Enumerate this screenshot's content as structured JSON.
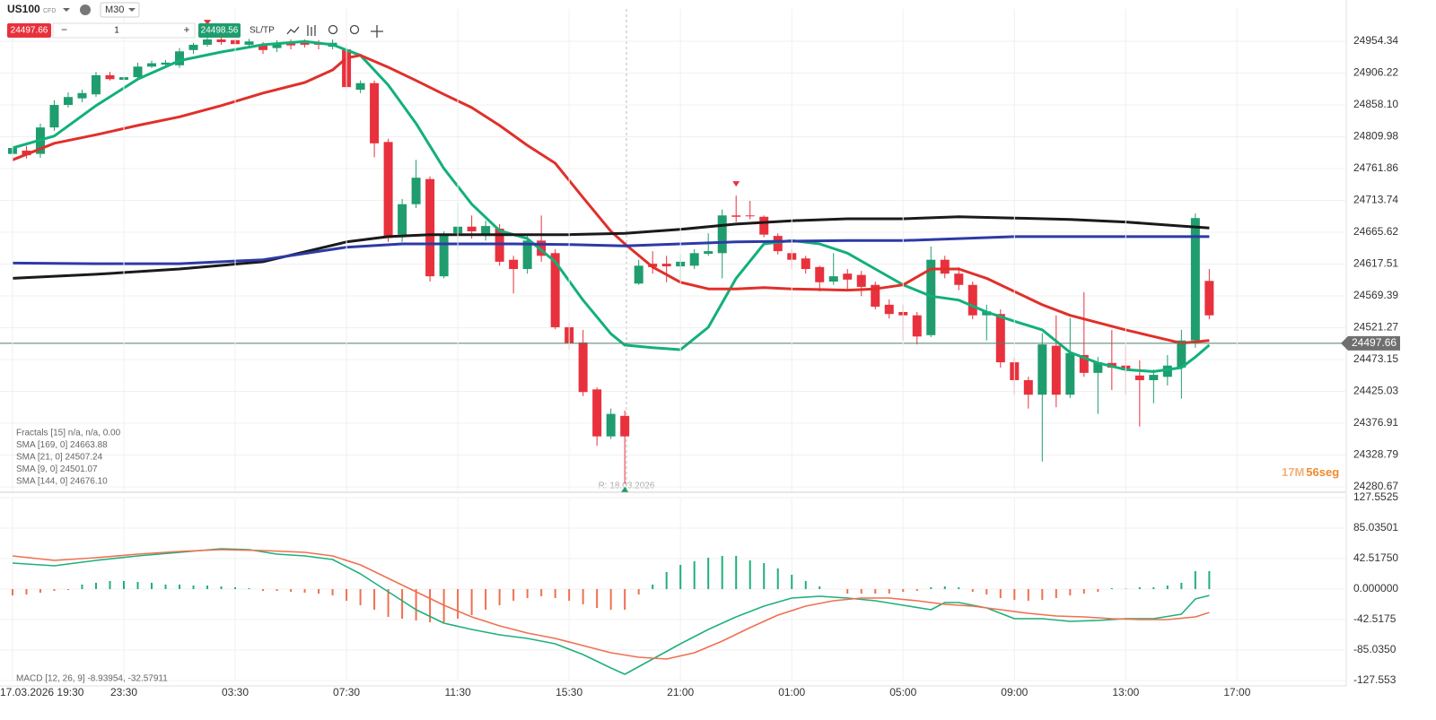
{
  "toolbar": {
    "symbol": "US100",
    "market": "CFD",
    "timeframe": "M30",
    "sell_price": "24497.66",
    "decrease": "−",
    "quantity": "1",
    "increase": "+",
    "buy_price": "24498.56",
    "sltp": "SL/TP"
  },
  "indicators": [
    "Fractals [15] n/a, n/a, 0.00",
    "SMA [169, 0] 24663.88",
    "SMA [21, 0] 24507.24",
    "SMA [9, 0] 24501.07",
    "SMA [144, 0] 24676.10"
  ],
  "macd_label": "MACD [12, 26, 9] -8.93954, -32.57911",
  "countdown": {
    "minutes": "17M",
    "seconds": "56seg"
  },
  "crosshair_label": "R: 18.03.2026",
  "chart_data": [
    {
      "type": "candlestick",
      "up_color": "#1f9d6e",
      "down_color": "#e8313d",
      "open": [
        24784,
        24789,
        24784,
        24824,
        24858,
        24868,
        24874,
        24903,
        24896,
        24900,
        24916,
        24919,
        24918,
        24941,
        24949,
        24957,
        24956,
        24949,
        24949,
        24944,
        24952,
        24952,
        24952,
        24946,
        24942,
        24881,
        24891,
        24802,
        24662,
        24708,
        24746,
        24599,
        24664,
        24674,
        24662,
        24671,
        24624,
        24610,
        24653,
        24634,
        24522,
        24499,
        24428,
        24357,
        24388,
        24588,
        24618,
        24618,
        24614,
        24615,
        24633,
        24634,
        24691,
        24691,
        24689,
        24660,
        24634,
        24626,
        24613,
        24591,
        24603,
        24601,
        24586,
        24556,
        24545,
        24540,
        24510,
        24624,
        24603,
        24586,
        24540,
        24542,
        24469,
        24442,
        24420,
        24494,
        24420,
        24480,
        24453,
        24468,
        24464,
        24449,
        24442,
        24447,
        24461,
        24502,
        24592
      ],
      "high": [
        24800,
        24796,
        24830,
        24865,
        24877,
        24881,
        24908,
        24908,
        24904,
        24922,
        24925,
        24926,
        24944,
        24952,
        24965,
        24963,
        24960,
        24958,
        24953,
        24956,
        24957,
        24957,
        24956,
        24957,
        24949,
        24895,
        24895,
        24807,
        24716,
        24775,
        24750,
        24667,
        24710,
        24691,
        24683,
        24678,
        24630,
        24662,
        24691,
        24640,
        24529,
        24518,
        24431,
        24399,
        24396,
        24624,
        24637,
        24630,
        24632,
        24640,
        24664,
        24700,
        24721,
        24713,
        24691,
        24664,
        24640,
        24630,
        24615,
        24634,
        24610,
        24607,
        24591,
        24564,
        24556,
        24545,
        24644,
        24630,
        24613,
        24591,
        24556,
        24549,
        24477,
        24447,
        24513,
        24540,
        24536,
        24575,
        24477,
        24518,
        24495,
        24472,
        24458,
        24480,
        24518,
        24694,
        24610
      ],
      "low": [
        24778,
        24777,
        24778,
        24819,
        24854,
        24862,
        24870,
        24895,
        24892,
        24897,
        24914,
        24916,
        24914,
        24935,
        24946,
        24949,
        24946,
        24946,
        24935,
        24938,
        24942,
        24945,
        24942,
        24942,
        24881,
        24876,
        24779,
        24651,
        24651,
        24702,
        24591,
        24596,
        24640,
        24656,
        24653,
        24615,
        24573,
        24603,
        24621,
        24519,
        24488,
        24418,
        24343,
        24353,
        24285,
        24586,
        24603,
        24590,
        24588,
        24610,
        24630,
        24596,
        24681,
        24685,
        24658,
        24632,
        24610,
        24603,
        24576,
        24586,
        24576,
        24569,
        24549,
        24535,
        24502,
        24496,
        24507,
        24596,
        24578,
        24534,
        24502,
        24461,
        24420,
        24399,
        24319,
        24401,
        24415,
        24447,
        24391,
        24427,
        24420,
        24372,
        24407,
        24434,
        24414,
        24491,
        24534
      ],
      "close": [
        24793,
        24782,
        24824,
        24858,
        24870,
        24876,
        24903,
        24897,
        24900,
        24916,
        24921,
        24922,
        24939,
        24949,
        24957,
        24953,
        24950,
        24954,
        24941,
        24950,
        24948,
        24949,
        24949,
        24952,
        24885,
        24891,
        24800,
        24657,
        24708,
        24748,
        24599,
        24662,
        24674,
        24667,
        24675,
        24621,
        24610,
        24653,
        24630,
        24522,
        24498,
        24424,
        24357,
        24391,
        24357,
        24615,
        24613,
        24614,
        24621,
        24634,
        24637,
        24691,
        24689,
        24690,
        24662,
        24637,
        24624,
        24610,
        24590,
        24599,
        24594,
        24583,
        24553,
        24542,
        24540,
        24508,
        24624,
        24603,
        24586,
        24540,
        24546,
        24469,
        24442,
        24420,
        24496,
        24420,
        24483,
        24453,
        24469,
        24461,
        24457,
        24442,
        24450,
        24464,
        24502,
        24687,
        24540
      ],
      "fractal_up": [
        14,
        52
      ],
      "fractal_down": [
        44
      ],
      "series": [
        {
          "color": "#12b07a",
          "x": [
            0,
            3,
            6,
            9,
            12,
            15,
            18,
            21,
            23,
            25,
            27,
            29,
            31,
            33,
            35,
            37,
            39,
            41,
            43,
            44,
            46,
            48,
            50,
            52,
            54,
            56,
            58,
            60,
            62,
            64,
            66,
            68,
            70,
            72,
            74,
            76,
            78,
            80,
            82,
            84,
            85,
            86
          ],
          "values": [
            24793,
            24811,
            24857,
            24897,
            24925,
            24938,
            24949,
            24954,
            24949,
            24933,
            24888,
            24830,
            24762,
            24708,
            24668,
            24656,
            24621,
            24563,
            24512,
            24495,
            24491,
            24488,
            24522,
            24596,
            24648,
            24653,
            24648,
            24634,
            24610,
            24586,
            24569,
            24563,
            24545,
            24531,
            24518,
            24484,
            24468,
            24458,
            24455,
            24461,
            24477,
            24495
          ]
        },
        {
          "color": "#e0302a",
          "x": [
            0,
            3,
            6,
            9,
            12,
            15,
            18,
            21,
            23,
            24,
            25,
            27,
            29,
            31,
            33,
            35,
            37,
            39,
            41,
            43,
            44,
            46,
            48,
            50,
            52,
            54,
            56,
            58,
            60,
            62,
            64,
            66,
            68,
            70,
            72,
            74,
            76,
            78,
            80,
            82,
            84,
            85,
            86
          ],
          "values": [
            24775,
            24800,
            24813,
            24827,
            24840,
            24857,
            24876,
            24892,
            24911,
            24929,
            24933,
            24915,
            24895,
            24874,
            24854,
            24827,
            24797,
            24770,
            24718,
            24667,
            24648,
            24613,
            24590,
            24580,
            24580,
            24582,
            24580,
            24579,
            24578,
            24580,
            24586,
            24610,
            24610,
            24596,
            24576,
            24556,
            24540,
            24529,
            24518,
            24508,
            24498,
            24500,
            24502
          ]
        },
        {
          "color": "#1a1a1a",
          "x": [
            0,
            6,
            12,
            18,
            24,
            27,
            30,
            35,
            40,
            44,
            48,
            52,
            56,
            60,
            64,
            68,
            72,
            76,
            80,
            84,
            86
          ],
          "values": [
            24596,
            24602,
            24610,
            24621,
            24651,
            24659,
            24662,
            24662,
            24662,
            24664,
            24670,
            24678,
            24683,
            24686,
            24686,
            24689,
            24687,
            24685,
            24681,
            24675,
            24672
          ]
        },
        {
          "color": "#2e3aa6",
          "x": [
            0,
            6,
            12,
            18,
            24,
            28,
            32,
            36,
            40,
            44,
            48,
            52,
            56,
            60,
            64,
            68,
            72,
            76,
            80,
            84,
            86
          ],
          "values": [
            24619,
            24618,
            24618,
            24624,
            24643,
            24648,
            24648,
            24648,
            24647,
            24645,
            24648,
            24651,
            24652,
            24653,
            24653,
            24656,
            24659,
            24659,
            24659,
            24659,
            24659
          ]
        }
      ],
      "current_price": 24497.66,
      "xlim": [
        -0.9,
        95.2
      ],
      "ylim": [
        24273.9,
        25003.1
      ],
      "yticks": [
        24954.34,
        24906.22,
        {
          "value": 24858.1,
          "label": "24858.10"
        },
        24809.98,
        24761.86,
        24713.74,
        24665.62,
        24617.51,
        24569.39,
        24521.27,
        24473.15,
        24425.03,
        24376.91,
        24328.79,
        24280.67
      ],
      "grid": true
    },
    {
      "type": "bar",
      "up_color": "#1fb07a",
      "down_color": "#f07050",
      "values": [
        -8.8,
        -7.5,
        -5,
        -2.5,
        -1.3,
        6.3,
        8.8,
        11.3,
        11.3,
        10,
        8.8,
        6.3,
        6.3,
        5,
        5,
        3.8,
        2.5,
        1.3,
        -2.5,
        -2.5,
        -3.8,
        -5,
        -6.3,
        -8.8,
        -16.3,
        -22.5,
        -28.8,
        -38.8,
        -41.3,
        -43.8,
        -46.3,
        -46.3,
        -41.3,
        -36.3,
        -28.8,
        -22.5,
        -16.3,
        -12.5,
        -10,
        -12.5,
        -16.3,
        -21.3,
        -26.3,
        -28.8,
        -28.8,
        -7.5,
        6.3,
        23.8,
        33.8,
        38.8,
        43.8,
        46.3,
        46.3,
        40,
        36.3,
        28.8,
        20,
        11.3,
        3.8,
        0,
        -6.3,
        -6.3,
        -6.3,
        -6.3,
        -3.8,
        -2.5,
        2.5,
        3.8,
        2.5,
        -3.8,
        -7.5,
        -12.5,
        -15,
        -16.3,
        -15,
        -12.5,
        -8.8,
        -6.3,
        -3.8,
        1.3,
        0.5,
        2.5,
        2.5,
        5,
        8.8,
        25,
        25
      ],
      "series": [
        {
          "color": "#1fb07a",
          "x": [
            0,
            3,
            6,
            9,
            12,
            15,
            17,
            19,
            21,
            23,
            25,
            27,
            29,
            31,
            33,
            35,
            37,
            39,
            41,
            43,
            44,
            46,
            48,
            50,
            52,
            54,
            56,
            58,
            60,
            62,
            64,
            66,
            67,
            68,
            70,
            72,
            74,
            76,
            78,
            80,
            82,
            84,
            85,
            86
          ],
          "values": [
            36.3,
            32.5,
            40,
            46.3,
            51.3,
            56.3,
            55,
            48.8,
            46.3,
            41.3,
            21.3,
            -3.8,
            -28.8,
            -47.5,
            -56.3,
            -63.8,
            -68.8,
            -76.3,
            -91.3,
            -110,
            -118.8,
            -97.5,
            -76.3,
            -56.3,
            -38.8,
            -23.8,
            -12.5,
            -10,
            -12.5,
            -16.3,
            -22.5,
            -28.8,
            -18.8,
            -18.8,
            -26.3,
            -41.3,
            -41.3,
            -45,
            -43.8,
            -41.3,
            -41.3,
            -35,
            -13.8,
            -8.9
          ]
        },
        {
          "color": "#f07050",
          "x": [
            0,
            3,
            6,
            9,
            12,
            15,
            18,
            21,
            23,
            25,
            27,
            29,
            31,
            33,
            35,
            37,
            39,
            41,
            43,
            45,
            47,
            49,
            51,
            53,
            55,
            57,
            59,
            61,
            63,
            65,
            67,
            69,
            71,
            73,
            75,
            77,
            79,
            81,
            83,
            85,
            86
          ],
          "values": [
            46.3,
            40,
            43.8,
            48.8,
            52.5,
            55,
            53.8,
            51.3,
            46.3,
            33.8,
            15,
            -3.8,
            -22.5,
            -38.8,
            -51.3,
            -61.3,
            -68.8,
            -78.8,
            -88.8,
            -95,
            -97.5,
            -88.8,
            -72.5,
            -53.8,
            -36.3,
            -23.8,
            -16.3,
            -12.5,
            -12.5,
            -16.3,
            -21.3,
            -23.8,
            -28.8,
            -33.8,
            -37.5,
            -38.8,
            -41.3,
            -42.5,
            -42.5,
            -38.8,
            -32.6
          ]
        }
      ],
      "xlim": [
        -0.9,
        95.2
      ],
      "xticks": [
        {
          "value": 0,
          "label": "17.03.2026 19:30"
        },
        {
          "value": 8,
          "label": "23:30"
        },
        {
          "value": 16,
          "label": "03:30"
        },
        {
          "value": 24,
          "label": "07:30"
        },
        {
          "value": 32,
          "label": "11:30"
        },
        {
          "value": 40,
          "label": "15:30"
        },
        {
          "value": 48,
          "label": "21:00"
        },
        {
          "value": 56,
          "label": "01:00"
        },
        {
          "value": 64,
          "label": "05:00"
        },
        {
          "value": 72,
          "label": "09:00"
        },
        {
          "value": 80,
          "label": "13:00"
        },
        {
          "value": 88,
          "label": "17:00"
        }
      ],
      "ylim": [
        -127.553,
        127.5525
      ],
      "yticks": [
        127.5525,
        85.03501,
        {
          "value": 42.5175,
          "label": "42.51750"
        },
        {
          "value": 0,
          "label": "0.000000"
        },
        -42.5175,
        {
          "value": -85.035,
          "label": "-85.0350"
        },
        -127.553
      ],
      "grid": true
    }
  ]
}
